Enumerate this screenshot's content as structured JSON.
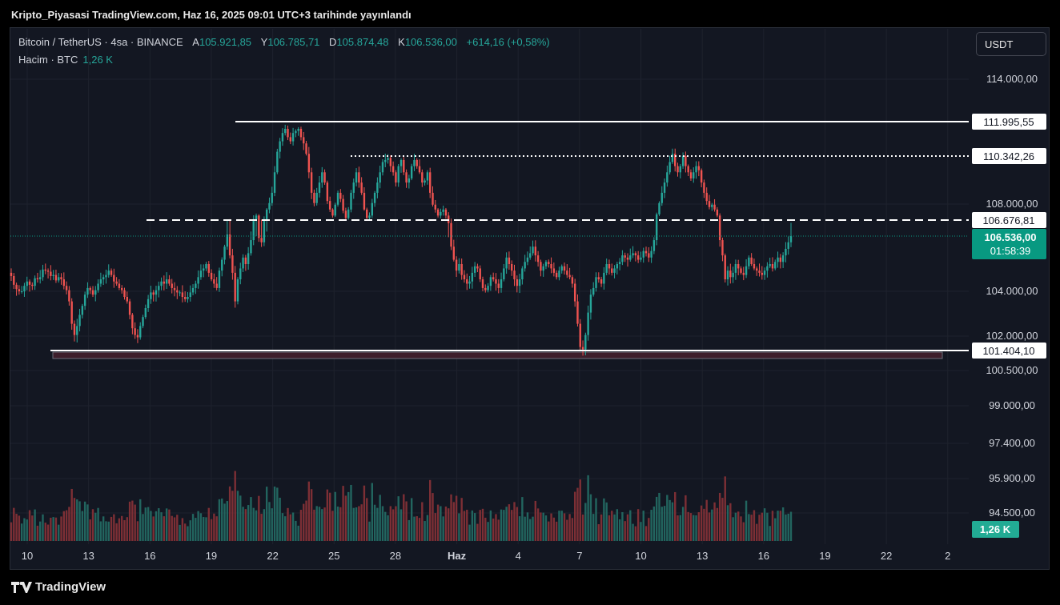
{
  "header": {
    "published": "Kripto_Piyasasi TradingView.com, Haz 16, 2025 09:01 UTC+3 tarihinde yayınlandı"
  },
  "legend": {
    "symbol": "Bitcoin / TetherUS · 4sa · BINANCE",
    "open_label": "A",
    "open": "105.921,85",
    "high_label": "Y",
    "high": "106.785,71",
    "low_label": "D",
    "low": "105.874,48",
    "close_label": "K",
    "close": "106.536,00",
    "change": "+614,16 (+0,58%)",
    "volume_label": "Hacim · BTC",
    "volume": "1,26 K"
  },
  "currency_button": "USDT",
  "footer": {
    "brand": "TradingView"
  },
  "colors": {
    "up": "#26a69a",
    "down": "#ef5350",
    "background": "#131722",
    "price_tag": "#089981",
    "support_zone": "#3d1f2c"
  },
  "chart_data": {
    "type": "candlestick",
    "y_axis_ticks": [
      "114.000,00",
      "108.000,00",
      "104.000,00",
      "102.000,00",
      "100.500,00",
      "99.000,00",
      "97.400,00",
      "95.900,00",
      "94.500,00"
    ],
    "x_axis_ticks": [
      "10",
      "13",
      "16",
      "19",
      "22",
      "25",
      "28",
      "Haz",
      "4",
      "7",
      "10",
      "13",
      "16",
      "19",
      "22",
      "2"
    ],
    "levels": [
      {
        "label": "111.995,55",
        "value": 111995.55,
        "style": "solid"
      },
      {
        "label": "110.342,26",
        "value": 110342.26,
        "style": "dotted"
      },
      {
        "label": "106.676,81",
        "value": 106676.81,
        "style": "dashed"
      },
      {
        "label": "101.404,10",
        "value": 101404.1,
        "style": "solid"
      }
    ],
    "current_price": {
      "label": "106.536,00",
      "countdown": "01:58:39",
      "value": 106536.0
    },
    "volume_tag": "1,26 K",
    "closes": [
      104700,
      104300,
      104100,
      104000,
      104000,
      104250,
      104450,
      104300,
      104250,
      104600,
      104550,
      104650,
      105000,
      104950,
      104900,
      104700,
      104750,
      104500,
      104650,
      104550,
      104250,
      104050,
      103550,
      102550,
      102050,
      102450,
      102950,
      103350,
      103850,
      104150,
      104050,
      103850,
      104050,
      104350,
      104550,
      104650,
      104750,
      104950,
      104750,
      104450,
      104350,
      104150,
      104050,
      103750,
      103550,
      102950,
      102350,
      102050,
      101950,
      102450,
      102850,
      103250,
      103650,
      103950,
      103850,
      104050,
      104250,
      104450,
      104350,
      104550,
      104350,
      104150,
      104050,
      103950,
      103950,
      103750,
      103650,
      103750,
      103950,
      104150,
      104350,
      104650,
      104950,
      105050,
      105250,
      104850,
      104550,
      104350,
      104150,
      104950,
      105450,
      106050,
      106550,
      105650,
      104850,
      103550,
      104550,
      105050,
      105550,
      105250,
      105750,
      106350,
      106750,
      107050,
      106450,
      106250,
      106750,
      107550,
      108050,
      108550,
      109550,
      110550,
      111050,
      111450,
      111650,
      111250,
      111050,
      111450,
      111550,
      111650,
      111250,
      110950,
      110450,
      109550,
      108550,
      108050,
      108550,
      109050,
      109550,
      109050,
      108150,
      107550,
      107050,
      107950,
      108550,
      108250,
      107450,
      106850,
      107550,
      108550,
      109050,
      109550,
      109050,
      108550,
      107550,
      106850,
      107050,
      108050,
      108550,
      109050,
      109550,
      110050,
      110150,
      110250,
      109850,
      109550,
      109050,
      109850,
      110150,
      109550,
      109050,
      109250,
      109850,
      110150,
      109850,
      109550,
      109050,
      109150,
      109550,
      108550,
      107950,
      107550,
      107050,
      107350,
      107550,
      107050,
      106650,
      106050,
      105450,
      104950,
      105250,
      104750,
      104550,
      104350,
      104450,
      104850,
      105150,
      105050,
      104550,
      104150,
      104050,
      104250,
      104650,
      104550,
      104350,
      104150,
      104550,
      105050,
      105550,
      105250,
      104950,
      104550,
      104250,
      104550,
      105050,
      105350,
      105550,
      105750,
      106050,
      105650,
      105350,
      104950,
      105150,
      105350,
      105250,
      105050,
      104850,
      104650,
      104950,
      105150,
      104950,
      104750,
      104650,
      104350,
      103550,
      102550,
      101550,
      101450,
      102050,
      103050,
      103850,
      104150,
      104650,
      104550,
      104350,
      104850,
      105250,
      105050,
      104850,
      105050,
      105250,
      105350,
      105650,
      105550,
      105450,
      105650,
      105750,
      105650,
      105450,
      105550,
      105850,
      105750,
      105550,
      105850,
      106350,
      107150,
      108050,
      108550,
      109050,
      109550,
      110050,
      110450,
      109850,
      109550,
      109850,
      110350,
      109850,
      109550,
      109250,
      109550,
      109850,
      109650,
      109050,
      108550,
      108150,
      107750,
      107950,
      107550,
      107050,
      106350,
      105650,
      104550,
      104950,
      104650,
      104850,
      105250,
      105050,
      104850,
      104750,
      105150,
      105550,
      105250,
      105050,
      104950,
      104850,
      104750,
      104950,
      105150,
      105250,
      105050,
      105350,
      105550,
      105350,
      105650,
      105950,
      106250,
      106536
    ]
  }
}
